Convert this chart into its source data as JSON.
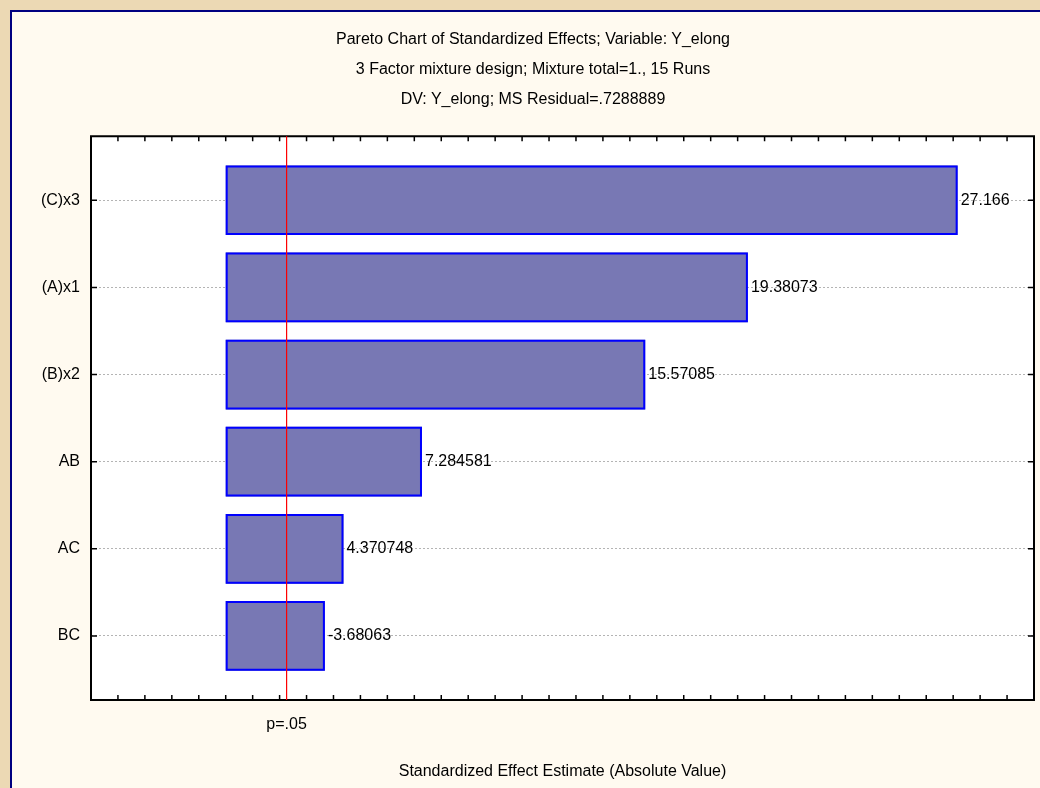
{
  "chart_data": {
    "type": "bar",
    "orientation": "horizontal",
    "title": "Pareto Chart of Standardized Effects; Variable: Y_elong",
    "subtitle": "3 Factor mixture design; Mixture total=1., 15 Runs\nDV: Y_elong; MS Residual=.7288889",
    "xlabel": "Standardized Effect Estimate (Absolute Value)",
    "categories": [
      "(C)x3",
      "(A)x1",
      "(B)x2",
      "AB",
      "AC",
      "BC"
    ],
    "values": [
      27.166,
      19.38073,
      15.57085,
      7.284581,
      4.370748,
      3.68063
    ],
    "value_labels": [
      "27.166",
      "19.38073",
      "15.57085",
      "7.284581",
      "4.370748",
      null
    ],
    "annotations": [
      {
        "text": "-3.68063",
        "x": 3.68063,
        "y": "BC"
      }
    ],
    "color": "#7878b4",
    "xlim": [
      -5,
      30
    ],
    "xticks": [
      {
        "value": -5,
        "label": null
      },
      {
        "value": -4,
        "label": null
      },
      {
        "value": -3,
        "label": null
      },
      {
        "value": -2,
        "label": null
      },
      {
        "value": -1,
        "label": null
      },
      {
        "value": 0,
        "label": null
      },
      {
        "value": 1,
        "label": null
      },
      {
        "value": 2,
        "label": null
      },
      {
        "value": 3,
        "label": null
      },
      {
        "value": 4,
        "label": null
      },
      {
        "value": 5,
        "label": null
      },
      {
        "value": 6,
        "label": null
      },
      {
        "value": 7,
        "label": null
      },
      {
        "value": 8,
        "label": null
      },
      {
        "value": 9,
        "label": null
      },
      {
        "value": 10,
        "label": null
      },
      {
        "value": 11,
        "label": null
      },
      {
        "value": 12,
        "label": null
      },
      {
        "value": 13,
        "label": null
      },
      {
        "value": 14,
        "label": null
      },
      {
        "value": 15,
        "label": null
      },
      {
        "value": 16,
        "label": null
      },
      {
        "value": 17,
        "label": null
      },
      {
        "value": 18,
        "label": null
      },
      {
        "value": 19,
        "label": null
      },
      {
        "value": 20,
        "label": null
      },
      {
        "value": 21,
        "label": null
      },
      {
        "value": 22,
        "label": null
      },
      {
        "value": 23,
        "label": null
      },
      {
        "value": 24,
        "label": null
      },
      {
        "value": 25,
        "label": null
      },
      {
        "value": 26,
        "label": null
      },
      {
        "value": 27,
        "label": null
      },
      {
        "value": 28,
        "label": null
      },
      {
        "value": 29,
        "label": null
      },
      {
        "value": 30,
        "label": null
      }
    ],
    "grid": "y",
    "tick_labels": "y",
    "ref_lines": [
      {
        "axis": "x",
        "value": 2.26,
        "label": "p=.05",
        "color": "#ff0000"
      }
    ]
  }
}
